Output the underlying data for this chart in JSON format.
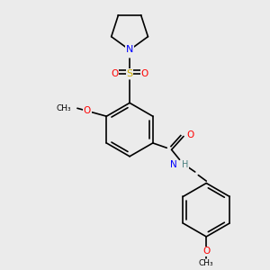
{
  "background_color": "#ebebeb",
  "figsize": [
    3.0,
    3.0
  ],
  "dpi": 100,
  "atom_colors": {
    "C": "#000000",
    "N": "#0000ff",
    "O": "#ff0000",
    "S": "#ccaa00",
    "H": "#4a8080"
  },
  "bond_color": "#000000",
  "bond_width": 1.2,
  "font_size": 7.5
}
